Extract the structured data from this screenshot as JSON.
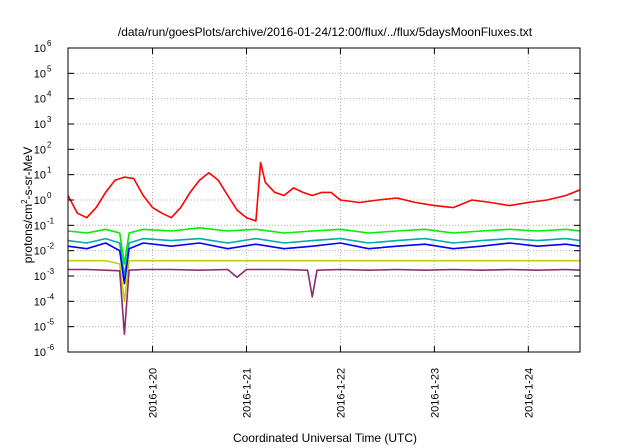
{
  "chart_data": {
    "type": "line",
    "title": "/data/run/goesPlots/archive/2016-01-24/12:00/flux/../flux/5daysMoonFluxes.txt",
    "xlabel": "Coordinated Universal Time (UTC)",
    "ylabel": {
      "pre": "protons/cm",
      "sup": "2",
      "post": "-s-sr-MeV"
    },
    "y_scale": "log",
    "ylim": [
      1e-06,
      1000000.0
    ],
    "xlim": [
      19.1,
      24.55
    ],
    "grid": true,
    "legend": "none",
    "y_ticks": [
      {
        "v": -6,
        "base": "10",
        "exp": "-6"
      },
      {
        "v": -5,
        "base": "10",
        "exp": "-5"
      },
      {
        "v": -4,
        "base": "10",
        "exp": "-4"
      },
      {
        "v": -3,
        "base": "10",
        "exp": "-3"
      },
      {
        "v": -2,
        "base": "10",
        "exp": "-2"
      },
      {
        "v": -1,
        "base": "10",
        "exp": "-1"
      },
      {
        "v": 0,
        "base": "10",
        "exp": "0"
      },
      {
        "v": 1,
        "base": "10",
        "exp": "1"
      },
      {
        "v": 2,
        "base": "10",
        "exp": "2"
      },
      {
        "v": 3,
        "base": "10",
        "exp": "3"
      },
      {
        "v": 4,
        "base": "10",
        "exp": "4"
      },
      {
        "v": 5,
        "base": "10",
        "exp": "5"
      },
      {
        "v": 6,
        "base": "10",
        "exp": "6"
      }
    ],
    "x_ticks": [
      {
        "v": 20,
        "label": "2016-1-20"
      },
      {
        "v": 21,
        "label": "2016-1-21"
      },
      {
        "v": 22,
        "label": "2016-1-22"
      },
      {
        "v": 23,
        "label": "2016-1-23"
      },
      {
        "v": 24,
        "label": "2016-1-24"
      }
    ],
    "series": [
      {
        "color": "#ff0000",
        "x": [
          19.1,
          19.2,
          19.3,
          19.4,
          19.5,
          19.6,
          19.7,
          19.8,
          19.9,
          20.0,
          20.1,
          20.2,
          20.3,
          20.4,
          20.5,
          20.6,
          20.7,
          20.8,
          20.9,
          21.0,
          21.1,
          21.15,
          21.2,
          21.3,
          21.4,
          21.5,
          21.6,
          21.7,
          21.8,
          21.9,
          22.0,
          22.2,
          22.4,
          22.6,
          22.8,
          23.0,
          23.2,
          23.4,
          23.6,
          23.8,
          24.0,
          24.2,
          24.4,
          24.55
        ],
        "y": [
          1.5,
          0.3,
          0.2,
          0.5,
          2.0,
          6.0,
          8.0,
          7.0,
          1.5,
          0.5,
          0.3,
          0.2,
          0.5,
          2.0,
          6.0,
          12.0,
          6.0,
          1.5,
          0.4,
          0.2,
          0.15,
          30.0,
          5.0,
          2.0,
          1.5,
          3.0,
          2.0,
          1.5,
          2.0,
          2.0,
          1.0,
          0.8,
          1.0,
          1.2,
          0.8,
          0.6,
          0.5,
          1.0,
          0.8,
          0.6,
          0.8,
          1.0,
          1.5,
          2.5
        ]
      },
      {
        "color": "#00ee00",
        "x": [
          19.1,
          19.3,
          19.5,
          19.65,
          19.7,
          19.75,
          19.9,
          20.2,
          20.5,
          20.8,
          21.1,
          21.4,
          21.7,
          22.0,
          22.3,
          22.6,
          22.9,
          23.2,
          23.5,
          23.8,
          24.1,
          24.4,
          24.55
        ],
        "y": [
          0.06,
          0.05,
          0.07,
          0.05,
          0.003,
          0.05,
          0.07,
          0.06,
          0.08,
          0.06,
          0.07,
          0.05,
          0.06,
          0.07,
          0.05,
          0.06,
          0.07,
          0.05,
          0.06,
          0.07,
          0.06,
          0.07,
          0.06
        ]
      },
      {
        "color": "#00aaaa",
        "x": [
          19.1,
          19.3,
          19.5,
          19.65,
          19.7,
          19.75,
          19.9,
          20.2,
          20.5,
          20.8,
          21.1,
          21.4,
          21.7,
          22.0,
          22.3,
          22.6,
          22.9,
          23.2,
          23.5,
          23.8,
          24.1,
          24.4,
          24.55
        ],
        "y": [
          0.025,
          0.02,
          0.03,
          0.02,
          0.001,
          0.02,
          0.03,
          0.025,
          0.03,
          0.02,
          0.03,
          0.02,
          0.025,
          0.03,
          0.02,
          0.025,
          0.03,
          0.02,
          0.025,
          0.03,
          0.025,
          0.03,
          0.025
        ]
      },
      {
        "color": "#0000ff",
        "x": [
          19.1,
          19.3,
          19.5,
          19.65,
          19.7,
          19.75,
          19.9,
          20.2,
          20.5,
          20.8,
          21.1,
          21.4,
          21.7,
          22.0,
          22.3,
          22.6,
          22.9,
          23.2,
          23.5,
          23.8,
          24.1,
          24.4,
          24.55
        ],
        "y": [
          0.015,
          0.012,
          0.02,
          0.01,
          0.0005,
          0.012,
          0.02,
          0.015,
          0.02,
          0.012,
          0.018,
          0.012,
          0.015,
          0.02,
          0.012,
          0.015,
          0.018,
          0.012,
          0.015,
          0.02,
          0.015,
          0.018,
          0.015
        ]
      },
      {
        "color": "#cccc00",
        "x": [
          19.1,
          19.3,
          19.5,
          19.65,
          19.7,
          19.75,
          19.9,
          20.2,
          20.5,
          20.8,
          21.1,
          21.4,
          21.7,
          22.0,
          22.3,
          22.6,
          22.9,
          23.2,
          23.5,
          23.8,
          24.1,
          24.4,
          24.55
        ],
        "y": [
          0.004,
          0.004,
          0.004,
          0.003,
          0.0001,
          0.004,
          0.004,
          0.004,
          0.004,
          0.004,
          0.004,
          0.004,
          0.004,
          0.004,
          0.004,
          0.004,
          0.004,
          0.004,
          0.004,
          0.004,
          0.004,
          0.004,
          0.004
        ]
      },
      {
        "color": "#8b2d6b",
        "x": [
          19.1,
          19.3,
          19.5,
          19.65,
          19.7,
          19.75,
          19.9,
          20.2,
          20.5,
          20.8,
          20.9,
          21.0,
          21.4,
          21.65,
          21.7,
          21.75,
          22.0,
          22.3,
          22.6,
          22.9,
          23.2,
          23.5,
          23.8,
          24.1,
          24.4,
          24.55
        ],
        "y": [
          0.0018,
          0.0018,
          0.0017,
          0.0016,
          5e-06,
          0.0017,
          0.0018,
          0.0018,
          0.0017,
          0.0018,
          0.0009,
          0.0018,
          0.0018,
          0.0017,
          0.00015,
          0.0017,
          0.0018,
          0.0017,
          0.0018,
          0.0017,
          0.0018,
          0.0017,
          0.0018,
          0.0017,
          0.0018,
          0.0017
        ]
      }
    ]
  }
}
